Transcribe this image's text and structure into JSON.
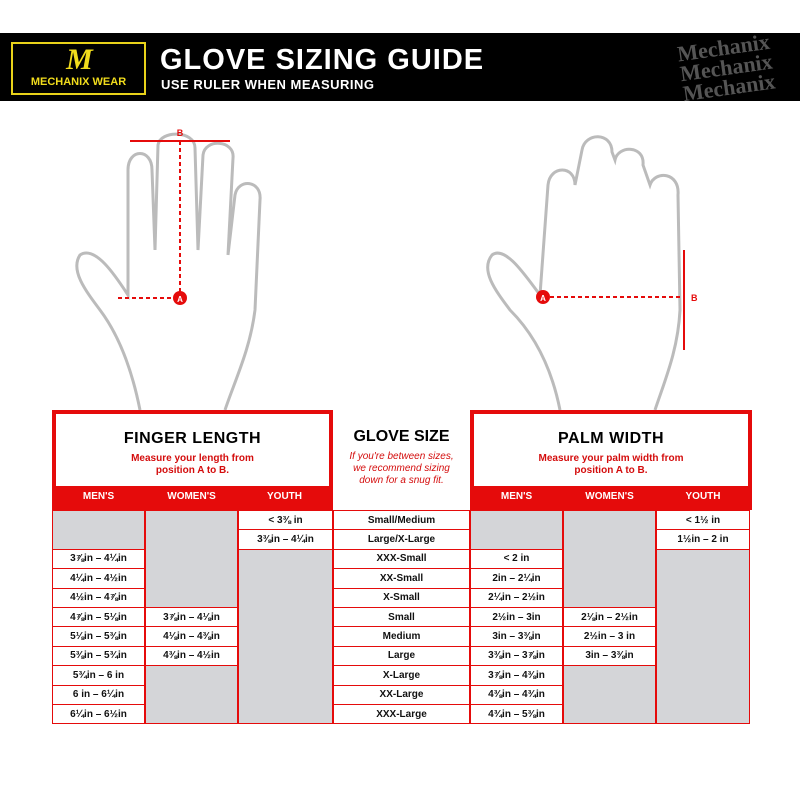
{
  "header": {
    "logo_text": "MECHANIX WEAR",
    "title": "GLOVE SIZING GUIDE",
    "subtitle": "USE RULER WHEN MEASURING",
    "watermark": "Mechanix"
  },
  "colors": {
    "accent": "#e50b0b",
    "gray": "#d4d5d8",
    "logo_yellow": "#f1dc1c"
  },
  "diagram": {
    "point_a": "A",
    "point_b": "B"
  },
  "finger": {
    "title": "FINGER LENGTH",
    "desc": "Measure your length from position A to B.",
    "cols": [
      "MEN'S",
      "WOMEN'S",
      "YOUTH"
    ],
    "mens": [
      null,
      null,
      "3⅞in – 4¼in",
      "4¼in – 4½in",
      "4½in – 4⅞in",
      "4⅞in – 5⅛in",
      "5⅛in – 5⅜in",
      "5⅜in – 5¾in",
      "5¾in – 6 in",
      "6 in – 6¼in",
      "6¼in – 6½in"
    ],
    "womens": [
      null,
      null,
      null,
      null,
      null,
      "3⅞in – 4⅛in",
      "4⅛in – 4⅜in",
      "4⅜in – 4½in",
      null,
      null,
      null
    ],
    "youth": [
      "< 3⅜ in",
      "3⅜in – 4¼in",
      null,
      null,
      null,
      null,
      null,
      null,
      null,
      null,
      null
    ]
  },
  "glove": {
    "title": "GLOVE SIZE",
    "desc": "If you're between sizes, we recommend sizing down for a snug fit.",
    "sizes": [
      "Small/Medium",
      "Large/X-Large",
      "XXX-Small",
      "XX-Small",
      "X-Small",
      "Small",
      "Medium",
      "Large",
      "X-Large",
      "XX-Large",
      "XXX-Large"
    ]
  },
  "palm": {
    "title": "PALM WIDTH",
    "desc": "Measure your palm width from position A to B.",
    "cols": [
      "MEN'S",
      "WOMEN'S",
      "YOUTH"
    ],
    "mens": [
      null,
      null,
      "< 2 in",
      "2in – 2¼in",
      "2¼in – 2½in",
      "2½in – 3in",
      "3in – 3⅜in",
      "3⅜in – 3⅞in",
      "3⅞in – 4⅜in",
      "4⅜in – 4¾in",
      "4¾in – 5⅜in"
    ],
    "womens": [
      null,
      null,
      null,
      null,
      null,
      "2⅛in – 2½in",
      "2½in – 3 in",
      "3in – 3⅜in",
      null,
      null,
      null
    ],
    "youth": [
      "< 1½ in",
      "1½in – 2 in",
      null,
      null,
      null,
      null,
      null,
      null,
      null,
      null,
      null
    ]
  }
}
